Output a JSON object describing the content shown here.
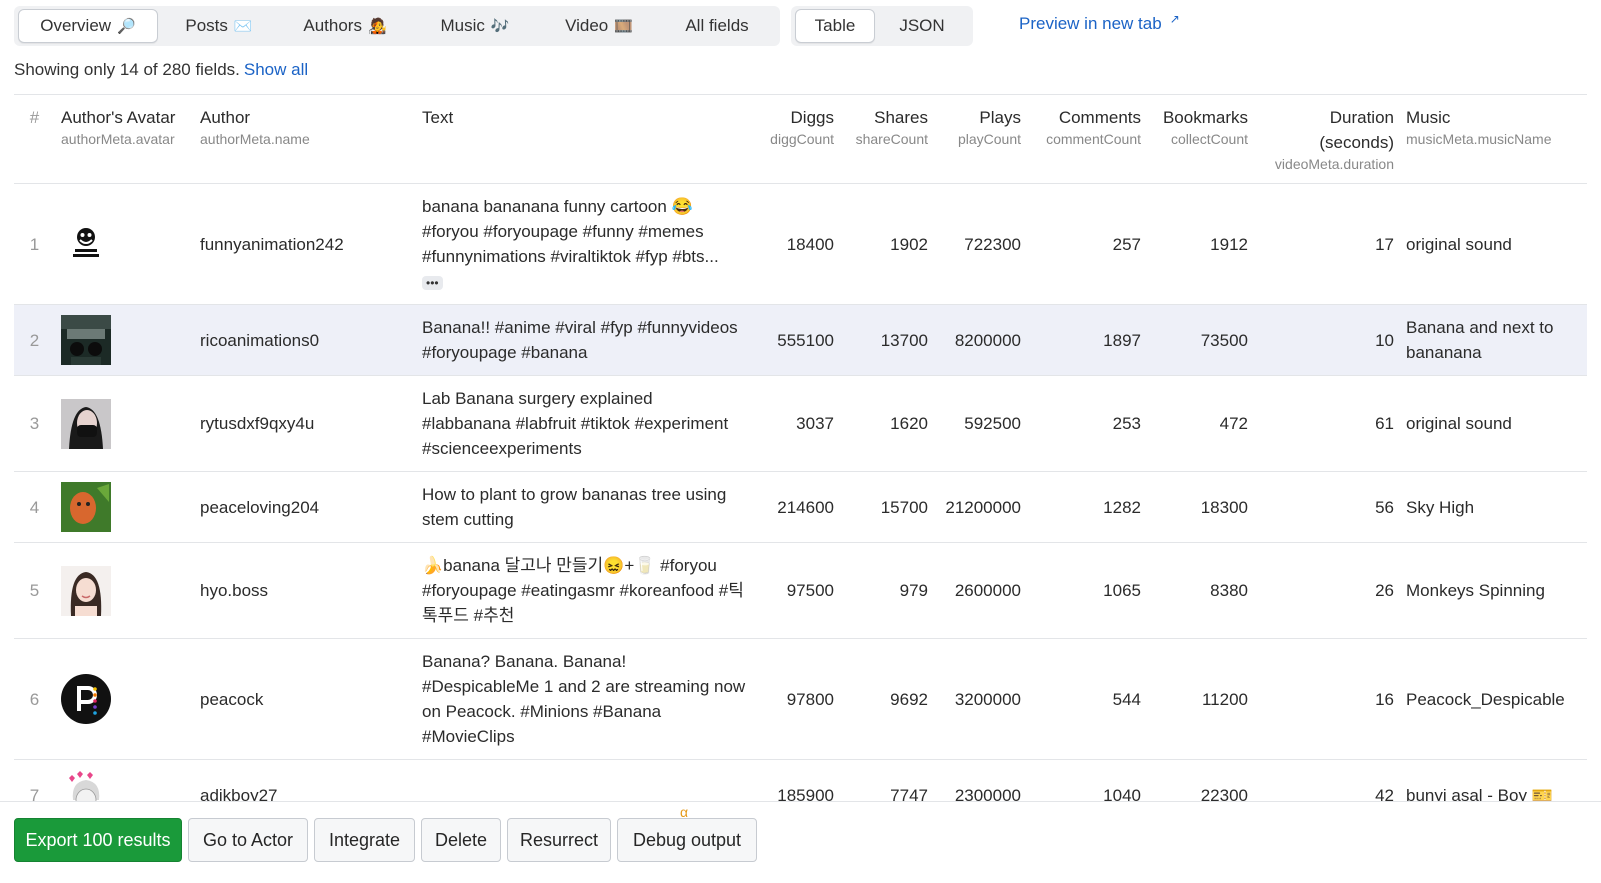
{
  "view_tabs": [
    {
      "label": "Overview",
      "icon": "🔎",
      "active": true
    },
    {
      "label": "Posts",
      "icon": "✉️",
      "active": false
    },
    {
      "label": "Authors",
      "icon": "🧑‍🎤",
      "active": false
    },
    {
      "label": "Music",
      "icon": "🎶",
      "active": false
    },
    {
      "label": "Video",
      "icon": "🎞️",
      "active": false
    },
    {
      "label": "All fields",
      "icon": "",
      "active": false
    }
  ],
  "format_tabs": [
    {
      "label": "Table",
      "active": true
    },
    {
      "label": "JSON",
      "active": false
    }
  ],
  "preview_link": {
    "label": "Preview in new tab",
    "icon": "↗"
  },
  "field_notice": {
    "text": "Showing only 14 of 280 fields.",
    "link": "Show all"
  },
  "table": {
    "columns": [
      {
        "label": "#",
        "sub": ""
      },
      {
        "label": "Author's Avatar",
        "sub": "authorMeta.avatar"
      },
      {
        "label": "Author",
        "sub": "authorMeta.name"
      },
      {
        "label": "Text",
        "sub": ""
      },
      {
        "label": "Diggs",
        "sub": "diggCount"
      },
      {
        "label": "Shares",
        "sub": "shareCount"
      },
      {
        "label": "Plays",
        "sub": "playCount"
      },
      {
        "label": "Comments",
        "sub": "commentCount"
      },
      {
        "label": "Bookmarks",
        "sub": "collectCount"
      },
      {
        "label": "Duration (seconds)",
        "sub": "videoMeta.duration"
      },
      {
        "label": "Music",
        "sub": "musicMeta.musicName"
      }
    ],
    "rows": [
      {
        "idx": "1",
        "author": "funnyanimation242",
        "text": "banana bananana funny cartoon 😂 #foryou #foryoupage #funny #memes #funnynimations #viraltiktok #fyp #bts...",
        "truncated": true,
        "diggs": "18400",
        "shares": "1902",
        "plays": "722300",
        "comments": "257",
        "bookmarks": "1912",
        "duration": "17",
        "music": "original sound",
        "avatar": "funny-animation-logo",
        "highlight": false
      },
      {
        "idx": "2",
        "author": "ricoanimations0",
        "text": "Banana!! #anime #viral #fyp #funnyvideos #foryoupage #banana",
        "truncated": false,
        "diggs": "555100",
        "shares": "13700",
        "plays": "8200000",
        "comments": "1897",
        "bookmarks": "73500",
        "duration": "10",
        "music": "Banana and next to bananana",
        "avatar": "dark-anime-scene",
        "highlight": true
      },
      {
        "idx": "3",
        "author": "rytusdxf9qxy4u",
        "text": "Lab Banana surgery explained #labbanana #labfruit #tiktok #experiment #scienceexperiments",
        "truncated": false,
        "diggs": "3037",
        "shares": "1620",
        "plays": "592500",
        "comments": "253",
        "bookmarks": "472",
        "duration": "61",
        "music": "original sound",
        "avatar": "masked-person-photo",
        "highlight": false
      },
      {
        "idx": "4",
        "author": "peaceloving204",
        "text": "How to plant to grow bananas tree using stem cutting",
        "truncated": false,
        "diggs": "214600",
        "shares": "15700",
        "plays": "21200000",
        "comments": "1282",
        "bookmarks": "18300",
        "duration": "56",
        "music": "Sky High",
        "avatar": "face-mask-photo",
        "highlight": false
      },
      {
        "idx": "5",
        "author": "hyo.boss",
        "text": "🍌banana 달고나 만들기😖+🥛 #foryou #foryoupage #eatingasmr #koreanfood #틱톡푸드 #추천",
        "truncated": false,
        "diggs": "97500",
        "shares": "979",
        "plays": "2600000",
        "comments": "1065",
        "bookmarks": "8380",
        "duration": "26",
        "music": "Monkeys Spinning",
        "avatar": "woman-portrait",
        "highlight": false
      },
      {
        "idx": "6",
        "author": "peacock",
        "text": "Banana? Banana. Banana! #DespicableMe 1 and 2 are streaming now on Peacock. #Minions #Banana #MovieClips",
        "truncated": false,
        "diggs": "97800",
        "shares": "9692",
        "plays": "3200000",
        "comments": "544",
        "bookmarks": "11200",
        "duration": "16",
        "music": "Peacock_Despicable",
        "avatar": "peacock-logo",
        "highlight": false
      },
      {
        "idx": "7",
        "author": "adikboy27",
        "text": "",
        "truncated": false,
        "diggs": "185900",
        "shares": "7747",
        "plays": "2300000",
        "comments": "1040",
        "bookmarks": "22300",
        "duration": "42",
        "music": "bunyi asal - Boy 🎫",
        "avatar": "anime-boy-hearts",
        "highlight": false
      }
    ]
  },
  "actions": {
    "export": "Export 100 results",
    "go_to_actor": "Go to Actor",
    "integrate": "Integrate",
    "delete": "Delete",
    "resurrect": "Resurrect",
    "debug_output": "Debug output",
    "debug_badge": "α"
  },
  "colors": {
    "accent": "#1b63c6",
    "primary_button": "#1a9a3a",
    "row_highlight": "#eef0f8"
  }
}
